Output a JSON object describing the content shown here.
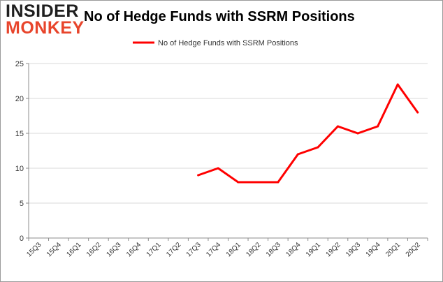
{
  "brand": {
    "logo_top": "INSIDER",
    "logo_bottom": "MONKEY",
    "accent_color": "#e8452c"
  },
  "chart_data": {
    "type": "line",
    "title": "No of Hedge Funds with SSRM Positions",
    "categories": [
      "15Q3",
      "15Q4",
      "16Q1",
      "16Q2",
      "16Q3",
      "16Q4",
      "17Q1",
      "17Q2",
      "17Q3",
      "17Q4",
      "18Q1",
      "18Q2",
      "18Q3",
      "18Q4",
      "19Q1",
      "19Q2",
      "19Q3",
      "19Q4",
      "20Q1",
      "20Q2"
    ],
    "series": [
      {
        "name": "No of Hedge Funds with SSRM Positions",
        "color": "#ff0000",
        "values": [
          null,
          null,
          null,
          null,
          null,
          null,
          null,
          null,
          9,
          10,
          8,
          8,
          8,
          12,
          13,
          16,
          15,
          16,
          22,
          18
        ]
      }
    ],
    "ylim": [
      0,
      25
    ],
    "yticks": [
      0,
      5,
      10,
      15,
      20,
      25
    ],
    "grid": true,
    "legend": "top-center",
    "xlabel": "",
    "ylabel": ""
  }
}
